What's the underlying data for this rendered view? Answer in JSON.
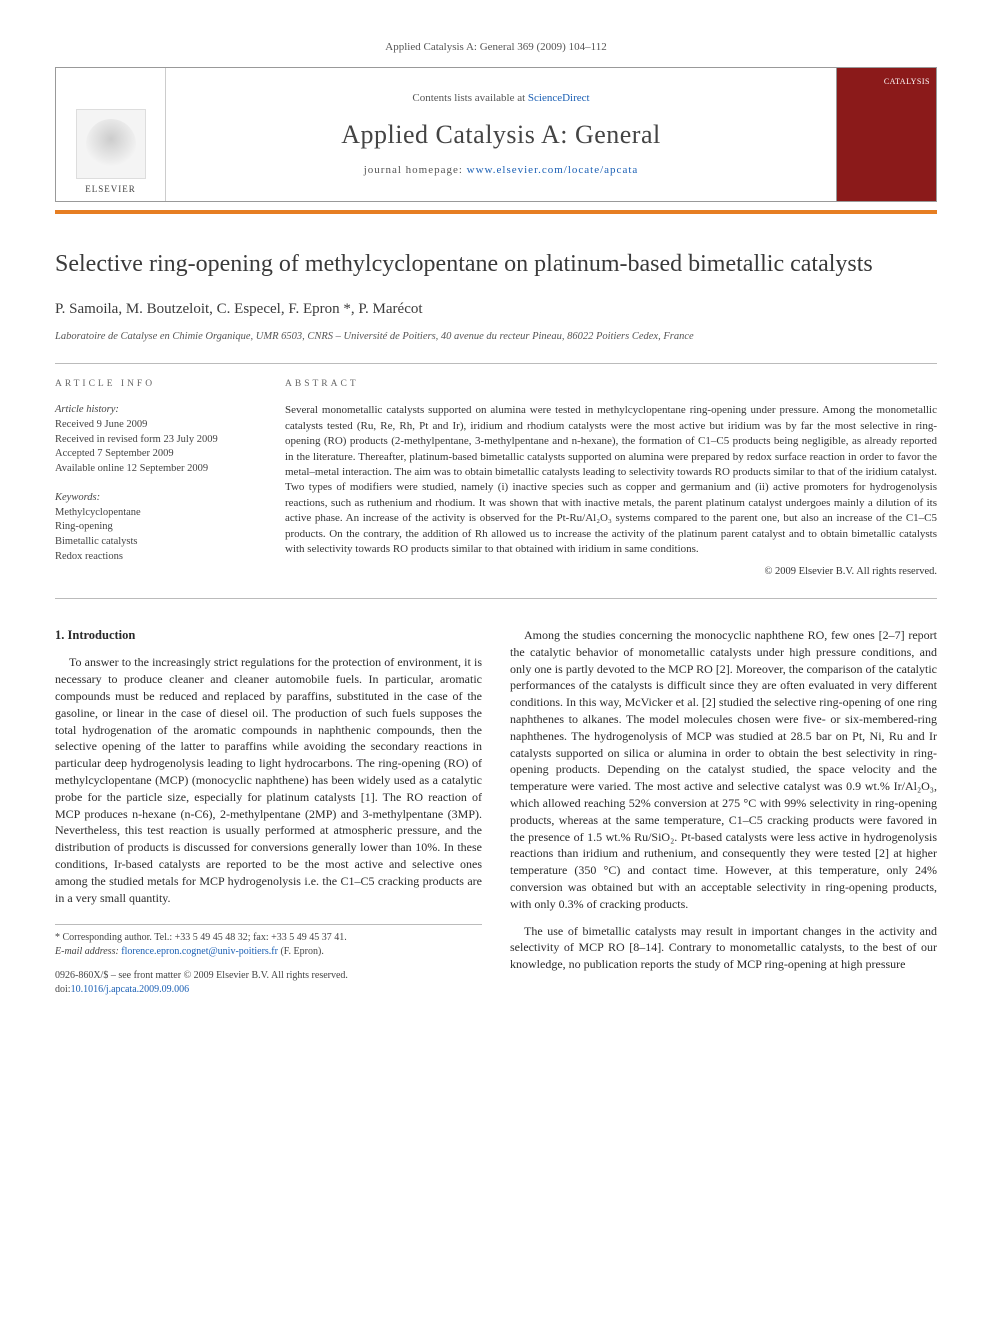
{
  "header_line": "Applied Catalysis A: General 369 (2009) 104–112",
  "banner": {
    "publisher": "ELSEVIER",
    "contents_prefix": "Contents lists available at ",
    "contents_link": "ScienceDirect",
    "journal_title": "Applied Catalysis A: General",
    "homepage_prefix": "journal homepage: ",
    "homepage_url": "www.elsevier.com/locate/apcata",
    "cover_label": "CATALYSIS"
  },
  "article": {
    "title": "Selective ring-opening of methylcyclopentane on platinum-based bimetallic catalysts",
    "authors": "P. Samoila, M. Boutzeloit, C. Especel, F. Epron *, P. Marécot",
    "affiliation": "Laboratoire de Catalyse en Chimie Organique, UMR 6503, CNRS – Université de Poitiers, 40 avenue du recteur Pineau, 86022 Poitiers Cedex, France"
  },
  "info": {
    "heading": "ARTICLE INFO",
    "history_label": "Article history:",
    "history": [
      "Received 9 June 2009",
      "Received in revised form 23 July 2009",
      "Accepted 7 September 2009",
      "Available online 12 September 2009"
    ],
    "keywords_label": "Keywords:",
    "keywords": [
      "Methylcyclopentane",
      "Ring-opening",
      "Bimetallic catalysts",
      "Redox reactions"
    ]
  },
  "abstract": {
    "heading": "ABSTRACT",
    "text": "Several monometallic catalysts supported on alumina were tested in methylcyclopentane ring-opening under pressure. Among the monometallic catalysts tested (Ru, Re, Rh, Pt and Ir), iridium and rhodium catalysts were the most active but iridium was by far the most selective in ring-opening (RO) products (2-methylpentane, 3-methylpentane and n-hexane), the formation of C1–C5 products being negligible, as already reported in the literature. Thereafter, platinum-based bimetallic catalysts supported on alumina were prepared by redox surface reaction in order to favor the metal–metal interaction. The aim was to obtain bimetallic catalysts leading to selectivity towards RO products similar to that of the iridium catalyst. Two types of modifiers were studied, namely (i) inactive species such as copper and germanium and (ii) active promoters for hydrogenolysis reactions, such as ruthenium and rhodium. It was shown that with inactive metals, the parent platinum catalyst undergoes mainly a dilution of its active phase. An increase of the activity is observed for the Pt-Ru/Al₂O₃ systems compared to the parent one, but also an increase of the C1–C5 products. On the contrary, the addition of Rh allowed us to increase the activity of the platinum parent catalyst and to obtain bimetallic catalysts with selectivity towards RO products similar to that obtained with iridium in same conditions.",
    "copyright": "© 2009 Elsevier B.V. All rights reserved."
  },
  "section1": {
    "heading": "1. Introduction",
    "p1": "To answer to the increasingly strict regulations for the protection of environment, it is necessary to produce cleaner and cleaner automobile fuels. In particular, aromatic compounds must be reduced and replaced by paraffins, substituted in the case of the gasoline, or linear in the case of diesel oil. The production of such fuels supposes the total hydrogenation of the aromatic compounds in naphthenic compounds, then the selective opening of the latter to paraffins while avoiding the secondary reactions in particular deep hydrogenolysis leading to light hydrocarbons. The ring-opening (RO) of methylcyclopentane (MCP) (monocyclic naphthene) has been widely used as a catalytic probe for the particle size, especially for platinum catalysts [1]. The RO reaction of MCP produces n-hexane (n-C6), 2-methylpentane (2MP) and 3-methylpentane (3MP). Nevertheless, this test reaction is usually performed at atmospheric pressure, and the distribution of products is discussed for conversions generally lower than 10%. In these conditions, Ir-based catalysts are reported to be the most active and selective ones among the studied metals for MCP hydrogenolysis i.e. the C1–C5 cracking products are in a very small quantity.",
    "p2": "Among the studies concerning the monocyclic naphthene RO, few ones [2–7] report the catalytic behavior of monometallic catalysts under high pressure conditions, and only one is partly devoted to the MCP RO [2]. Moreover, the comparison of the catalytic performances of the catalysts is difficult since they are often evaluated in very different conditions. In this way, McVicker et al. [2] studied the selective ring-opening of one ring naphthenes to alkanes. The model molecules chosen were five- or six-membered-ring naphthenes. The hydrogenolysis of MCP was studied at 28.5 bar on Pt, Ni, Ru and Ir catalysts supported on silica or alumina in order to obtain the best selectivity in ring-opening products. Depending on the catalyst studied, the space velocity and the temperature were varied. The most active and selective catalyst was 0.9 wt.% Ir/Al₂O₃, which allowed reaching 52% conversion at 275 °C with 99% selectivity in ring-opening products, whereas at the same temperature, C1–C5 cracking products were favored in the presence of 1.5 wt.% Ru/SiO₂. Pt-based catalysts were less active in hydrogenolysis reactions than iridium and ruthenium, and consequently they were tested [2] at higher temperature (350 °C) and contact time. However, at this temperature, only 24% conversion was obtained but with an acceptable selectivity in ring-opening products, with only 0.3% of cracking products.",
    "p3": "The use of bimetallic catalysts may result in important changes in the activity and selectivity of MCP RO [8–14]. Contrary to monometallic catalysts, to the best of our knowledge, no publication reports the study of MCP ring-opening at high pressure"
  },
  "footnote": {
    "corr": "* Corresponding author. Tel.: +33 5 49 45 48 32; fax: +33 5 49 45 37 41.",
    "email_label": "E-mail address: ",
    "email": "florence.epron.cognet@univ-poitiers.fr",
    "email_name": " (F. Epron)."
  },
  "footer": {
    "line1": "0926-860X/$ – see front matter © 2009 Elsevier B.V. All rights reserved.",
    "doi_prefix": "doi:",
    "doi": "10.1016/j.apcata.2009.09.006"
  },
  "colors": {
    "accent_orange": "#e67e22",
    "cover_red": "#8b1a1a",
    "link": "#1a5fb4"
  }
}
